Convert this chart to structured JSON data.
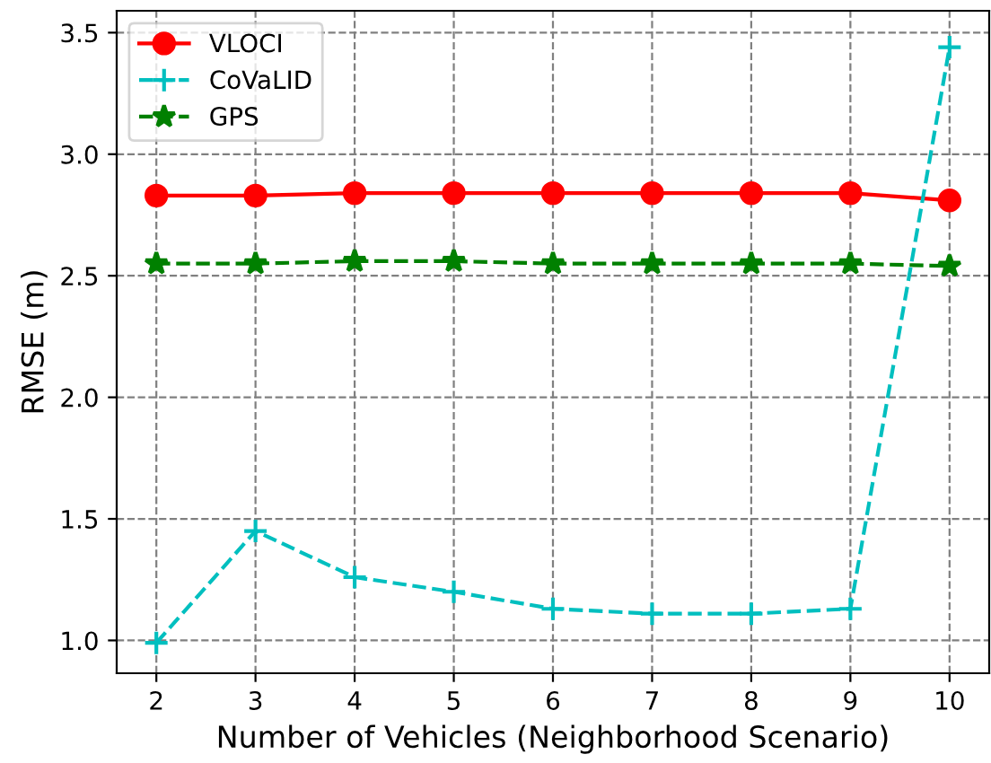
{
  "chart_data": {
    "type": "line",
    "xlabel": "Number of Vehicles (Neighborhood Scenario)",
    "ylabel": "RMSE (m)",
    "x": [
      2,
      3,
      4,
      5,
      6,
      7,
      8,
      9,
      10
    ],
    "series": [
      {
        "name": "VLOCI",
        "color": "#ff0000",
        "marker": "circle",
        "line_style": "solid",
        "values": [
          2.83,
          2.83,
          2.84,
          2.84,
          2.84,
          2.84,
          2.84,
          2.84,
          2.81
        ]
      },
      {
        "name": "CoVaLID",
        "color": "#00bfbf",
        "marker": "cross",
        "line_style": "dashed",
        "values": [
          0.99,
          1.45,
          1.26,
          1.2,
          1.13,
          1.11,
          1.11,
          1.13,
          3.44
        ]
      },
      {
        "name": "GPS",
        "color": "#008000",
        "marker": "star",
        "line_style": "dashed",
        "values": [
          2.55,
          2.55,
          2.56,
          2.56,
          2.55,
          2.55,
          2.55,
          2.55,
          2.54
        ]
      }
    ],
    "xlim": [
      1.6,
      10.4
    ],
    "xticks": [
      2,
      3,
      4,
      5,
      6,
      7,
      8,
      9,
      10
    ],
    "ylim": [
      0.865,
      3.59
    ],
    "yticks": [
      {
        "value": 1,
        "label": "1.0"
      },
      1.5,
      {
        "value": 2,
        "label": "2.0"
      },
      2.5,
      {
        "value": 3,
        "label": "3.0"
      },
      3.5
    ],
    "grid": true,
    "legend": "top left"
  }
}
